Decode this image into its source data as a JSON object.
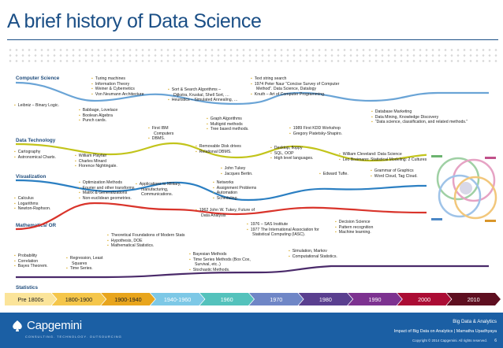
{
  "title": "A brief history of Data Science",
  "lanes": [
    {
      "label": "Computer Science",
      "color": "#6aa4d6"
    },
    {
      "label": "Data Technology",
      "color": "#c2c41b"
    },
    {
      "label": "Visualization",
      "color": "#2b7fc2"
    },
    {
      "label": "Mathematics/ OR",
      "color": "#d9342b"
    },
    {
      "label": "Statistics",
      "color": "#4a2a6a"
    }
  ],
  "notes": [
    {
      "id": "n_leibniz",
      "rows": [
        "Leibniz – Binary Logic."
      ]
    },
    {
      "id": "n_turing",
      "rows": [
        "Turing machines",
        "Information Theory",
        "Weiner & Cybernetics",
        "Von Neumann Architecture"
      ]
    },
    {
      "id": "n_babbage",
      "rows": [
        "Babbage, Lovelace",
        "Boolean Algebra",
        "Punch cards."
      ]
    },
    {
      "id": "n_sort",
      "rows": [
        "Sort & Search Algorithms –",
        "~Dijkstra, Kruskal, Shell Sort, …",
        "Heuristics – Simulated Annealing, …"
      ]
    },
    {
      "id": "n_text",
      "rows": [
        "Text string search",
        "1974 Peter Naur “Concise Survey of Computer",
        "~Method”. Data Science, Datalogy",
        "Knuth – Art of Computer Programming."
      ]
    },
    {
      "id": "n_database",
      "rows": [
        "Database Marketing",
        "Data Mining, Knowledge Discovery",
        "“Data science, classification, and related methods.”"
      ]
    },
    {
      "id": "n_ibm",
      "rows": [
        "First IBM",
        "~Computers",
        "DBMS."
      ]
    },
    {
      "id": "n_graph",
      "rows": [
        "Graph Algorithms",
        "Multigrid methods",
        "Tree based methods."
      ]
    },
    {
      "id": "n_kdd",
      "rows": [
        "1989 First KDD Workshop",
        "Gregory Piatetsky-Shapiro."
      ]
    },
    {
      "id": "n_cartography",
      "rows": [
        "Cartography",
        "Astronomical Charts."
      ]
    },
    {
      "id": "n_playfair",
      "rows": [
        "William Playfair",
        "Charles Minard",
        "Florence Nightingale."
      ]
    },
    {
      "id": "n_disk",
      "rows": [
        "Removable Disk drives",
        "Relational DBMS."
      ]
    },
    {
      "id": "n_desktop",
      "rows": [
        "Desktop, floppy",
        "SQL, OOP",
        "High level languages."
      ]
    },
    {
      "id": "n_cleveland",
      "rows": [
        "William Cleveland: Data Science",
        "Leo Breimann: Statistical Modeling: 2 Cultures."
      ]
    },
    {
      "id": "n_tukey",
      "rows": [
        "John Tukey",
        "Jacques Bertin."
      ]
    },
    {
      "id": "n_tufte",
      "rows": [
        "Edward Tufte."
      ]
    },
    {
      "id": "n_grammar",
      "rows": [
        "Grammar of Graphics",
        "Word Cloud, Tag Cloud."
      ]
    },
    {
      "id": "n_calculus",
      "rows": [
        "Calculus",
        "Logarithms",
        "Newton-Raphson."
      ]
    },
    {
      "id": "n_optimization",
      "rows": [
        "Optimization Methods",
        "Fourier and other transforms",
        "Matrix & Generalizations",
        "Non-euclidean geometries."
      ]
    },
    {
      "id": "n_military",
      "rows": [
        "Applications to Military,",
        "~manufacturing,",
        "~Communications."
      ]
    },
    {
      "id": "n_networks",
      "rows": [
        "Networks",
        "Assignment Problems",
        "Automation",
        "Scheduling."
      ]
    },
    {
      "id": "n_future",
      "rows": [
        "1962 John W. Tukey, Future of",
        "~Data Analysis"
      ]
    },
    {
      "id": "n_sas",
      "rows": [
        "1976 – SAS Institute",
        "1977 The International Association for",
        "~Statistical Computing (IASC)."
      ]
    },
    {
      "id": "n_decision",
      "rows": [
        "Decision Science",
        "Pattern recognition",
        "Machine learning."
      ]
    },
    {
      "id": "n_theoretical",
      "rows": [
        "Theoretical Foundations of Modern Stats",
        "Hypothesis, DOE",
        "Mathematical Statistics."
      ]
    },
    {
      "id": "n_probability",
      "rows": [
        "Probability",
        "Correlation",
        "Bayes Theorem."
      ]
    },
    {
      "id": "n_regression",
      "rows": [
        "Regression, Least",
        "~Squares",
        "Time Series."
      ]
    },
    {
      "id": "n_bayesian",
      "rows": [
        "Bayesian Methods",
        "Time Series Methods (Box Cox,",
        "~Survival, etc..)",
        "Stochastic Methods."
      ]
    },
    {
      "id": "n_simulation",
      "rows": [
        "Simulation, Markov",
        "Computational Statistics."
      ]
    }
  ],
  "timeline": [
    {
      "label": "Pre 1800s",
      "color": "#fbe49a",
      "dark": true
    },
    {
      "label": "1800-1900",
      "color": "#f5c64a",
      "dark": true
    },
    {
      "label": "1900-1940",
      "color": "#e8a51d",
      "dark": true
    },
    {
      "label": "1940-1960",
      "color": "#7dc8e6",
      "dark": false
    },
    {
      "label": "1960",
      "color": "#54c2bc",
      "dark": false
    },
    {
      "label": "1970",
      "color": "#6f86c6",
      "dark": false
    },
    {
      "label": "1980",
      "color": "#5a3f8f",
      "dark": false
    },
    {
      "label": "1990",
      "color": "#7d3290",
      "dark": false
    },
    {
      "label": "2000",
      "color": "#ab0c34",
      "dark": false
    },
    {
      "label": "2010",
      "color": "#5e0f20",
      "dark": false
    }
  ],
  "footer": {
    "logo_text": "Capgemini",
    "tagline": "CONSULTING. TECHNOLOGY. OUTSOURCING",
    "section": "Big Data & Analytics",
    "course": "Impact of Big Data on Analytics | Mamatha Upadhyaya",
    "copyright": "Copyright © 2014 Capgemini. All rights reserved.",
    "page": "6",
    "bg": "#1b5fa4"
  }
}
